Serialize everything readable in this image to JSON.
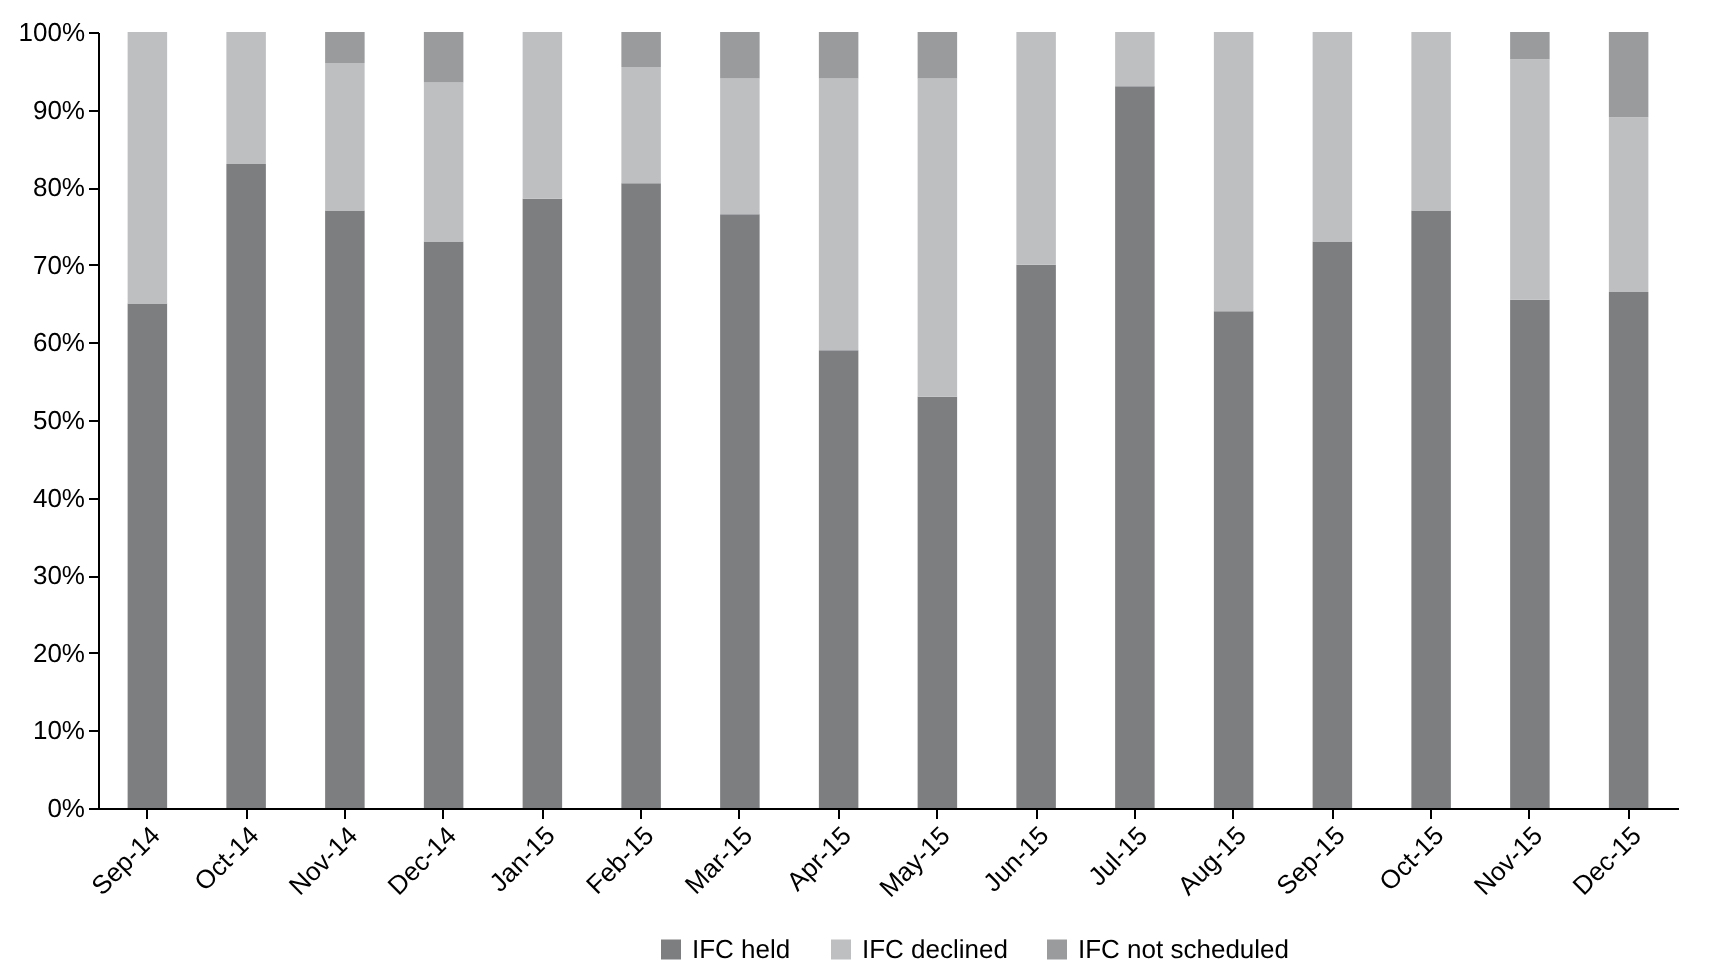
{
  "chart_data": {
    "type": "bar",
    "stacked": true,
    "legend": "bottom",
    "grid": false,
    "categories": [
      "Sep-14",
      "Oct-14",
      "Nov-14",
      "Dec-14",
      "Jan-15",
      "Feb-15",
      "Mar-15",
      "Apr-15",
      "May-15",
      "Jun-15",
      "Jul-15",
      "Aug-15",
      "Sep-15",
      "Oct-15",
      "Nov-15",
      "Dec-15"
    ],
    "ylim": [
      0,
      100
    ],
    "yticks": [
      {
        "value": 0,
        "label": "0%"
      },
      {
        "value": 10,
        "label": "10%"
      },
      {
        "value": 20,
        "label": "20%"
      },
      {
        "value": 30,
        "label": "30%"
      },
      {
        "value": 40,
        "label": "40%"
      },
      {
        "value": 50,
        "label": "50%"
      },
      {
        "value": 60,
        "label": "60%"
      },
      {
        "value": 70,
        "label": "70%"
      },
      {
        "value": 80,
        "label": "80%"
      },
      {
        "value": 90,
        "label": "90%"
      },
      {
        "value": 100,
        "label": "100%"
      }
    ],
    "series": [
      {
        "name": "IFC held",
        "color": "#7d7e80",
        "values": [
          65,
          83,
          77,
          73,
          78.5,
          80.5,
          76.5,
          59,
          53,
          70,
          93,
          64,
          73,
          77,
          65.5,
          66.5
        ]
      },
      {
        "name": "IFC declined",
        "color": "#bebfc1",
        "values": [
          35,
          17,
          19,
          20.5,
          21.5,
          15,
          17.5,
          35,
          41,
          30,
          7,
          36,
          27,
          23,
          31,
          22.5
        ]
      },
      {
        "name": "IFC not scheduled",
        "color": "#999b9d",
        "values": [
          null,
          null,
          4,
          6.5,
          null,
          4.5,
          6,
          6,
          6,
          null,
          null,
          null,
          null,
          null,
          3.5,
          11
        ]
      }
    ]
  }
}
